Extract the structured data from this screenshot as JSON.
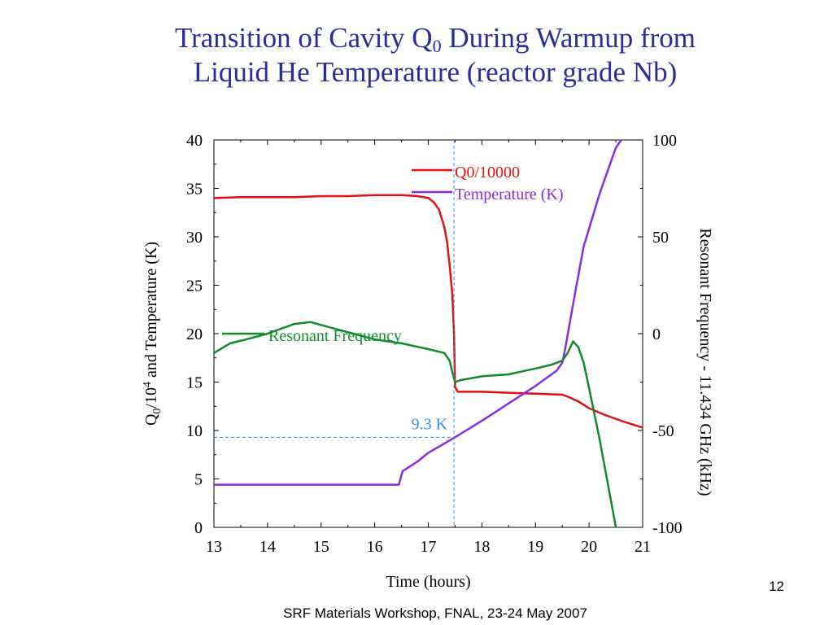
{
  "slide": {
    "title_line1_pre": "Transition of Cavity Q",
    "title_line1_sub": "0",
    "title_line1_post": " During Warmup from",
    "title_line2": "Liquid He Temperature (reactor grade Nb)",
    "footer": "SRF Materials Workshop, FNAL, 23-24 May 2007",
    "page_number": "12"
  },
  "chart_data": {
    "type": "line",
    "xlabel": "Time (hours)",
    "ylabel_left": {
      "pre": "Q",
      "sub": "0",
      "mid": "/10",
      "sup": "4",
      "post": " and Temperature (K)"
    },
    "ylabel_right": "Resonant Frequency - 11.434 GHz (kHz)",
    "xlim": [
      13,
      21
    ],
    "ylim_left": [
      0,
      40
    ],
    "ylim_right": [
      -100,
      100
    ],
    "x_ticks": [
      "13",
      "14",
      "15",
      "16",
      "17",
      "18",
      "19",
      "20",
      "21"
    ],
    "y_ticks_left": [
      "0",
      "5",
      "10",
      "15",
      "20",
      "25",
      "30",
      "35",
      "40"
    ],
    "y_ticks_right": [
      "-100",
      "-50",
      "0",
      "50",
      "100"
    ],
    "grid": false,
    "series": [
      {
        "name": "Q0/10000",
        "axis": "left",
        "color": "#e01010",
        "x": [
          13,
          13.5,
          14,
          14.5,
          15,
          15.5,
          16,
          16.5,
          16.8,
          17.0,
          17.1,
          17.2,
          17.3,
          17.35,
          17.4,
          17.45,
          17.48,
          17.5,
          17.55,
          18,
          18.5,
          19,
          19.5,
          19.6,
          19.8,
          20,
          20.3,
          20.6,
          21
        ],
        "y": [
          34,
          34.1,
          34.1,
          34.1,
          34.2,
          34.2,
          34.3,
          34.3,
          34.2,
          34.0,
          33.6,
          32.8,
          31.0,
          29.5,
          27.0,
          24.0,
          20.0,
          14.5,
          14.0,
          14.0,
          13.9,
          13.8,
          13.7,
          13.5,
          13.0,
          12.3,
          11.6,
          11.0,
          10.3
        ]
      },
      {
        "name": "Temperature (K)",
        "axis": "left",
        "color": "#8a2be2",
        "x": [
          13,
          14,
          15,
          16,
          16.45,
          16.48,
          16.52,
          16.8,
          17.0,
          17.5,
          18,
          18.5,
          19,
          19.4,
          19.5,
          19.55,
          19.7,
          19.9,
          20.2,
          20.5,
          20.6
        ],
        "y": [
          4.4,
          4.4,
          4.4,
          4.4,
          4.4,
          5.0,
          5.8,
          6.8,
          7.7,
          9.3,
          11.0,
          12.8,
          14.6,
          16.2,
          17.0,
          18.3,
          23.0,
          29.0,
          34.5,
          39.2,
          40.0
        ]
      },
      {
        "name": "Resonant Frequency",
        "axis": "right",
        "color": "#108a2a",
        "x": [
          13,
          13.3,
          13.6,
          14,
          14.5,
          14.8,
          15.2,
          15.6,
          16,
          16.5,
          17,
          17.3,
          17.4,
          17.45,
          17.5,
          17.6,
          18,
          18.5,
          19,
          19.3,
          19.5,
          19.6,
          19.7,
          19.8,
          19.9,
          20,
          20.2,
          20.4,
          20.5
        ],
        "y": [
          -10,
          -5,
          -3,
          0,
          5,
          6,
          3,
          0,
          -3,
          -5,
          -8,
          -10,
          -14,
          -20,
          -25,
          -24,
          -22,
          -21,
          -18,
          -16,
          -14,
          -10,
          -4,
          -7,
          -15,
          -28,
          -55,
          -85,
          -100
        ]
      }
    ],
    "annotations": [
      {
        "text": "9.3 K",
        "x": 17.48,
        "y": 9.3,
        "color": "#2f8fe0"
      }
    ]
  }
}
